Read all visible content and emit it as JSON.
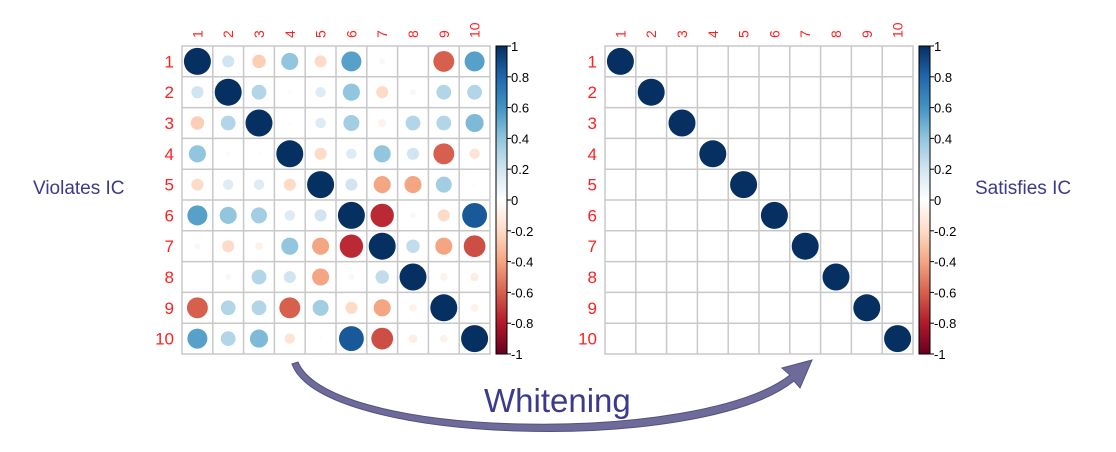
{
  "labels": {
    "left": "Violates IC",
    "right": "Satisfies IC",
    "arrow": "Whitening"
  },
  "chart_data": [
    {
      "type": "heatmap",
      "variant": "corrplot-circle",
      "title": "",
      "row_labels": [
        "1",
        "2",
        "3",
        "4",
        "5",
        "6",
        "7",
        "8",
        "9",
        "10"
      ],
      "col_labels": [
        "1",
        "2",
        "3",
        "4",
        "5",
        "6",
        "7",
        "8",
        "9",
        "10"
      ],
      "colorbar_ticks": [
        "1",
        "0.8",
        "0.6",
        "0.4",
        "0.2",
        "0",
        "-0.2",
        "-0.4",
        "-0.6",
        "-0.8",
        "-1"
      ],
      "range": [
        -1,
        1
      ],
      "values": [
        [
          1,
          0.2,
          -0.25,
          0.4,
          -0.2,
          0.55,
          0.05,
          0,
          -0.6,
          0.55
        ],
        [
          0.2,
          1,
          0.3,
          -0.03,
          0.15,
          0.4,
          -0.2,
          0.05,
          0.3,
          0.3
        ],
        [
          -0.25,
          0.3,
          1,
          -0.02,
          0.15,
          0.35,
          -0.08,
          0.3,
          0.3,
          0.45
        ],
        [
          0.4,
          -0.03,
          -0.02,
          1,
          -0.2,
          0.15,
          0.4,
          0.2,
          -0.6,
          -0.15
        ],
        [
          -0.2,
          0.15,
          0.15,
          -0.2,
          1,
          0.2,
          -0.4,
          -0.4,
          0.35,
          0.02
        ],
        [
          0.55,
          0.4,
          0.35,
          0.15,
          0.2,
          1,
          -0.75,
          0.05,
          -0.2,
          0.85
        ],
        [
          0.05,
          -0.2,
          -0.08,
          0.4,
          -0.4,
          -0.75,
          1,
          0.25,
          -0.4,
          -0.65
        ],
        [
          0,
          0.05,
          0.3,
          0.2,
          -0.4,
          0.05,
          0.25,
          1,
          -0.08,
          -0.1
        ],
        [
          -0.6,
          0.3,
          0.3,
          -0.6,
          0.35,
          -0.2,
          -0.4,
          -0.08,
          1,
          -0.08
        ],
        [
          0.55,
          0.3,
          0.45,
          -0.15,
          0.02,
          0.85,
          -0.65,
          -0.1,
          -0.08,
          1
        ]
      ]
    },
    {
      "type": "heatmap",
      "variant": "corrplot-circle",
      "title": "",
      "row_labels": [
        "1",
        "2",
        "3",
        "4",
        "5",
        "6",
        "7",
        "8",
        "9",
        "10"
      ],
      "col_labels": [
        "1",
        "2",
        "3",
        "4",
        "5",
        "6",
        "7",
        "8",
        "9",
        "10"
      ],
      "colorbar_ticks": [
        "1",
        "0.8",
        "0.6",
        "0.4",
        "0.2",
        "0",
        "-0.2",
        "-0.4",
        "-0.6",
        "-0.8",
        "-1"
      ],
      "range": [
        -1,
        1
      ],
      "values": "identity"
    }
  ],
  "colors": {
    "palette": [
      "#67001F",
      "#B2182B",
      "#D6604D",
      "#F4A582",
      "#FDDBC7",
      "#FFFFFF",
      "#D1E5F0",
      "#92C5DE",
      "#4393C3",
      "#2166AC",
      "#053061"
    ],
    "label": "#FF2020",
    "text": "#3c3a8a",
    "arrow": "#6e6a9a"
  }
}
